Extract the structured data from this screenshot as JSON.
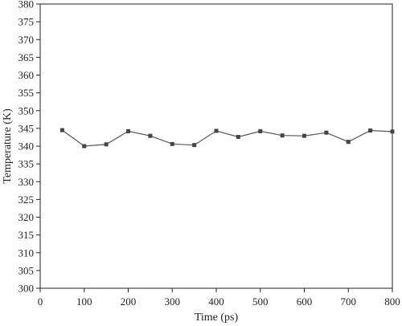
{
  "chart_data": {
    "type": "line",
    "title": "",
    "xlabel": "Time (ps)",
    "ylabel": "Temperature (K)",
    "xlim": [
      0,
      800
    ],
    "ylim": [
      300,
      380
    ],
    "x_ticks": [
      0,
      100,
      200,
      300,
      400,
      500,
      600,
      700,
      800
    ],
    "y_ticks": [
      300,
      305,
      310,
      315,
      320,
      325,
      330,
      335,
      340,
      345,
      350,
      355,
      360,
      365,
      370,
      375,
      380
    ],
    "grid": false,
    "legend": "none",
    "marker": "square",
    "series": [
      {
        "x": [
          50,
          100,
          150,
          200,
          250,
          300,
          350,
          400,
          450,
          500,
          550,
          600,
          650,
          700,
          750,
          800
        ],
        "y": [
          344.5,
          340.0,
          340.5,
          344.2,
          342.9,
          340.6,
          340.3,
          344.3,
          342.6,
          344.2,
          343.0,
          342.9,
          343.8,
          341.2,
          344.4,
          344.1
        ],
        "color": "#555555"
      }
    ]
  }
}
